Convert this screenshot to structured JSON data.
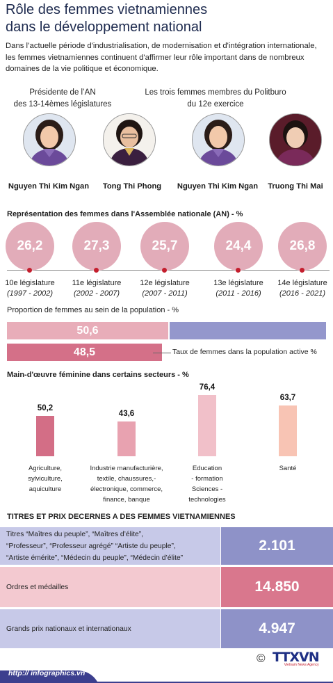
{
  "header": {
    "title_line1": "Rôle des femmes vietnamiennes",
    "title_line2": "dans le développement national",
    "intro": "Dans l’actuelle période d'industrialisation, de modernisation et d'intégration internationale, les femmes vietnamiennes continuent d'affirmer leur rôle important dans de nombreux domaines de la vie politique et économique."
  },
  "leaders": {
    "left_heading_line1": "Présidente de l’AN",
    "left_heading_line2": "des 13-14èmes législatures",
    "right_heading_line1": "Les trois femmes membres du Politburo",
    "right_heading_line2": "du 12e exercice",
    "people": [
      {
        "name": "Nguyen Thi Kim Ngan"
      },
      {
        "name": "Tong Thi Phong"
      },
      {
        "name": "Nguyen Thi Kim Ngan"
      },
      {
        "name": "Truong Thi Mai"
      }
    ]
  },
  "assembly": {
    "heading": "Représentation des femmes dans l'Assemblée nationale (AN) - %",
    "items": [
      {
        "value": "26,2",
        "label": "10e législature",
        "years": "(1997 - 2002)"
      },
      {
        "value": "27,3",
        "label": "11e législature",
        "years": "(2002 - 2007)"
      },
      {
        "value": "25,7",
        "label": "12e législature",
        "years": "(2007 - 2011)"
      },
      {
        "value": "24,4",
        "label": "13e législature",
        "years": "(2011 - 2016)"
      },
      {
        "value": "26,8",
        "label": "14e législature",
        "years": "(2016 - 2021)"
      }
    ]
  },
  "population": {
    "heading": "Proportion de femmes au sein de la population - %",
    "share_value": "50,6",
    "share_fraction": 0.506,
    "active_value": "48,5",
    "active_fraction": 0.485,
    "active_label": "Taux de femmes dans la population active %",
    "colors": {
      "share": "#e8adb9",
      "rest": "#9497cc",
      "active": "#d47088"
    }
  },
  "chart_data": {
    "type": "bar",
    "title": "Main-d'œuvre féminine dans certains secteurs - %",
    "categories": [
      "Agriculture, sylviculture, aquiculture",
      "Industrie manufacturière, textile, chaussures,- électronique, commerce, finance, banque",
      "Education - formation Sciences - technologies",
      "Santé"
    ],
    "values": [
      50.2,
      43.6,
      76.4,
      63.7
    ],
    "value_labels": [
      "50,2",
      "43,6",
      "76,4",
      "63,7"
    ],
    "category_lines": [
      [
        "Agriculture,",
        "sylviculture,",
        "aquiculture"
      ],
      [
        "Industrie manufacturière,",
        "textile, chaussures,-",
        "électronique, commerce,",
        "finance, banque"
      ],
      [
        "Education",
        "- formation",
        "Sciences -",
        "technologies"
      ],
      [
        "Santé"
      ]
    ],
    "colors": [
      "#d36e86",
      "#e8a2b0",
      "#f1c0c9",
      "#f8c4b4"
    ]
  },
  "awards": {
    "heading": "TITRES ET PRIX DECERNES A DES FEMMES VIETNAMIENNES",
    "rows": [
      {
        "lines": [
          "Titres “Maîtres du peuple”, “Maîtres d’élite”,",
          "“Professeur”, “Professeur agrégé” “Artiste du peuple”,",
          "“Artiste émérite”, “Médecin du peuple”, “Médecin d’élite”"
        ],
        "value": "2.101"
      },
      {
        "lines": [
          "Ordres et médailles"
        ],
        "value": "14.850"
      },
      {
        "lines": [
          "Grands prix nationaux et internationaux"
        ],
        "value": "4.947"
      }
    ],
    "colors": {
      "row_blue_left": "#c7c9e8",
      "row_blue_right": "#8e92c8",
      "row_pink_left": "#f3c9d0",
      "row_pink_right": "#d9778d"
    }
  },
  "footer": {
    "source": "http:// infographics.vn",
    "copyright": "©",
    "brand": "TTXVN",
    "brand_sub": "Vietnam News Agency"
  }
}
